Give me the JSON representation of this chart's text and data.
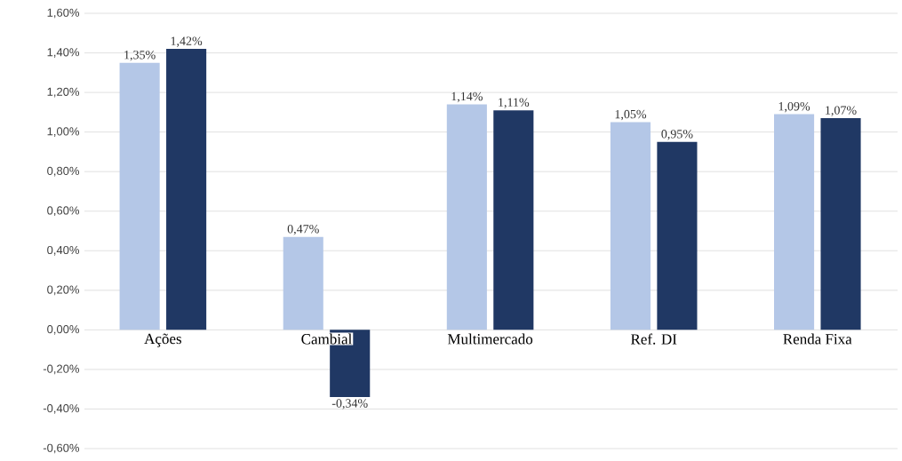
{
  "chart_data": {
    "type": "bar",
    "categories": [
      "Ações",
      "Cambial",
      "Multimercado",
      "Ref. DI",
      "Renda Fixa"
    ],
    "series": [
      {
        "color": "#b4c7e7",
        "values": [
          1.35,
          0.47,
          1.14,
          1.05,
          1.09
        ],
        "value_labels": [
          "1,35%",
          "0,47%",
          "1,14%",
          "1,05%",
          "1,09%"
        ]
      },
      {
        "color": "#203864",
        "values": [
          1.42,
          -0.34,
          1.11,
          0.95,
          1.07
        ],
        "value_labels": [
          "1,42%",
          "-0,34%",
          "1,11%",
          "0,95%",
          "1,07%"
        ]
      }
    ],
    "ylim": [
      -0.6,
      1.6
    ],
    "yticks": [
      {
        "value": -0.6,
        "label": "-0,60%"
      },
      {
        "value": -0.4,
        "label": "-0,40%"
      },
      {
        "value": -0.2,
        "label": "-0,20%"
      },
      {
        "value": 0,
        "label": "0,00%"
      },
      {
        "value": 0.2,
        "label": "0,20%"
      },
      {
        "value": 0.4,
        "label": "0,40%"
      },
      {
        "value": 0.6,
        "label": "0,60%"
      },
      {
        "value": 0.8,
        "label": "0,80%"
      },
      {
        "value": 1.0,
        "label": "1,00%"
      },
      {
        "value": 1.2,
        "label": "1,20%"
      },
      {
        "value": 1.4,
        "label": "1,40%"
      },
      {
        "value": 1.6,
        "label": "1,60%"
      }
    ],
    "grid": "y"
  }
}
